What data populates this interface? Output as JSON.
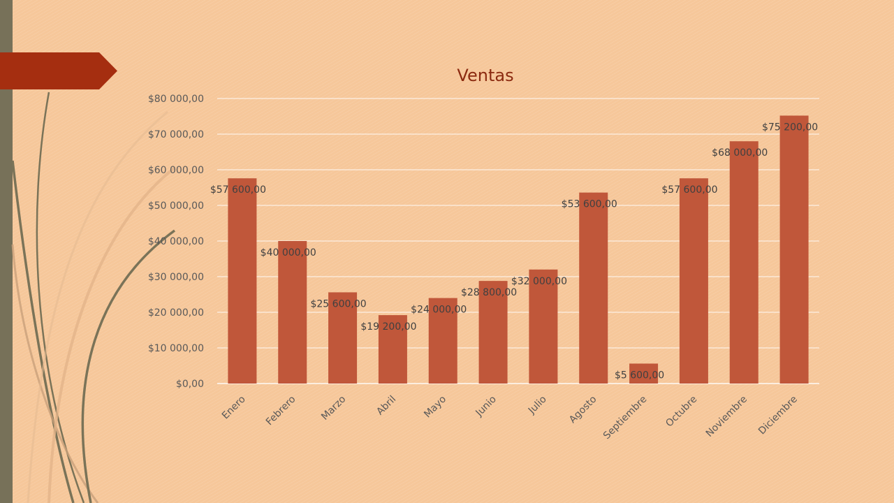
{
  "colors": {
    "background": "#f6c79a",
    "bar": "#c0573a",
    "title_tab": "#a52e10",
    "side_bar": "#777159",
    "gridline": "#ffffff",
    "title": "#8b2a10"
  },
  "chart_data": {
    "type": "bar",
    "title": "Ventas",
    "xlabel": "",
    "ylabel": "",
    "ylim": [
      0,
      80000
    ],
    "y_ticks": [
      0,
      10000,
      20000,
      30000,
      40000,
      50000,
      60000,
      70000,
      80000
    ],
    "y_tick_labels": [
      "$0,00",
      "$10 000,00",
      "$20 000,00",
      "$30 000,00",
      "$40 000,00",
      "$50 000,00",
      "$60 000,00",
      "$70 000,00",
      "$80 000,00"
    ],
    "grid": true,
    "legend": "none",
    "categories": [
      "Enero",
      "Febrero",
      "Marzo",
      "Abril",
      "Mayo",
      "Junio",
      "Julio",
      "Agosto",
      "Septiembre",
      "Octubre",
      "Noviembre",
      "Diciembre"
    ],
    "values": [
      57600,
      40000,
      25600,
      19200,
      24000,
      28800,
      32000,
      53600,
      5600,
      57600,
      68000,
      75200
    ],
    "data_labels": [
      "$57 600,00",
      "$40 000,00",
      "$25 600,00",
      "$19 200,00",
      "$24 000,00",
      "$28 800,00",
      "$32 000,00",
      "$53 600,00",
      "$5 600,00",
      "$57 600,00",
      "$68 000,00",
      "$75 200,00"
    ]
  }
}
